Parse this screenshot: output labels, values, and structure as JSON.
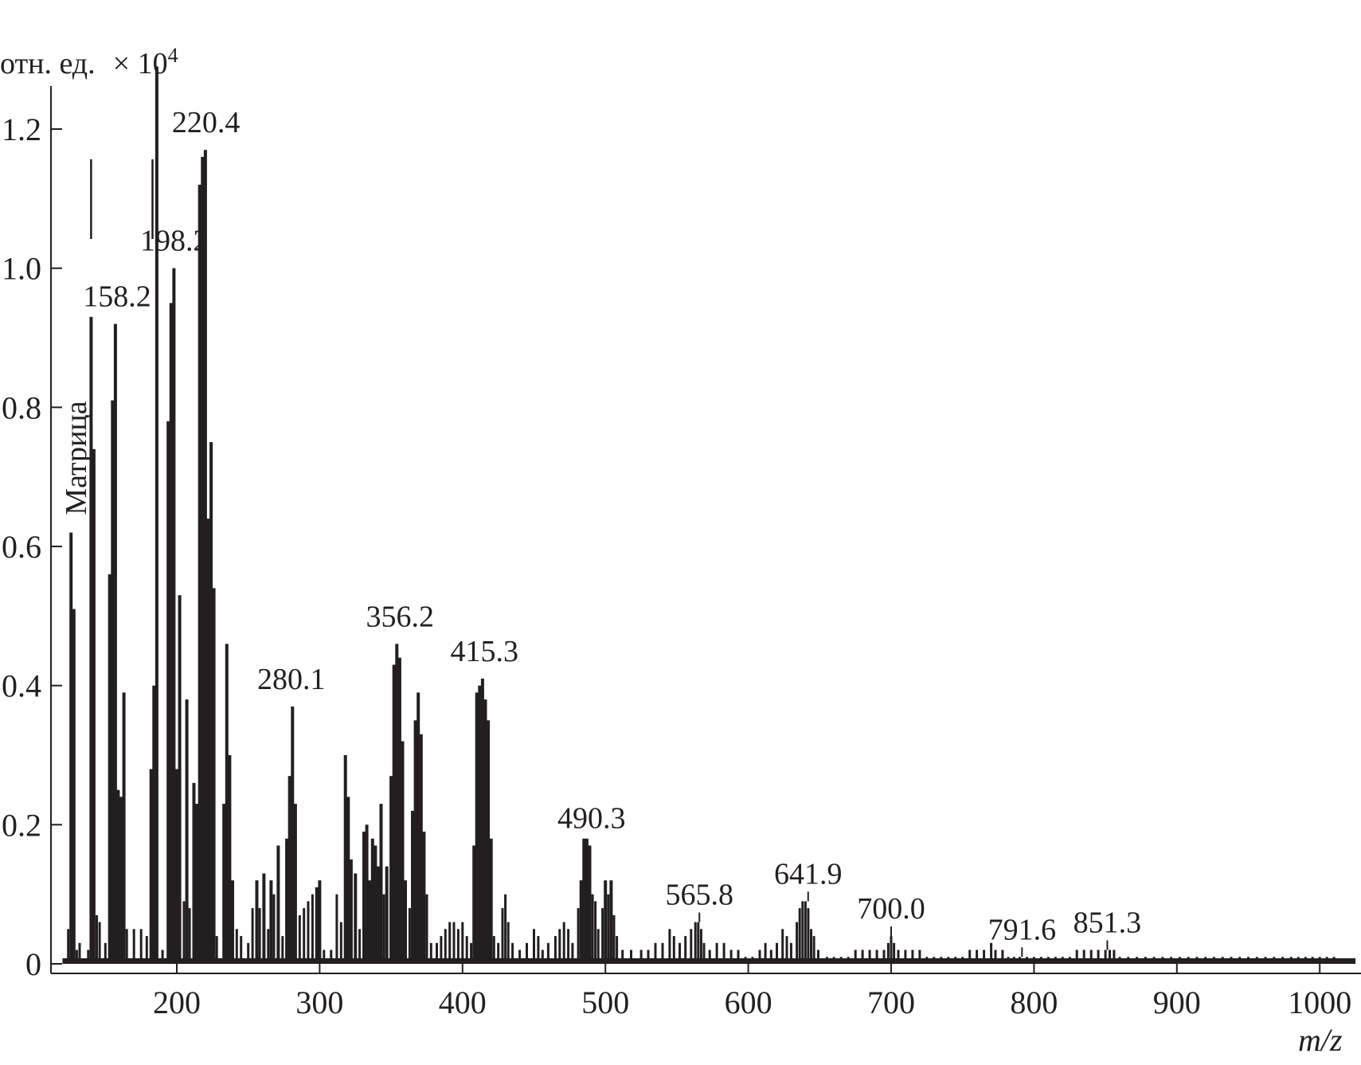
{
  "chart_data": {
    "type": "bar",
    "title": "",
    "xlabel": "m/z",
    "ylabel": "отн. ед.",
    "y_multiplier": "× 10",
    "y_multiplier_exp": "4",
    "xlim": [
      115,
      1025
    ],
    "ylim": [
      0,
      1.26
    ],
    "x_ticks": [
      200,
      300,
      400,
      500,
      600,
      700,
      800,
      900,
      1000
    ],
    "x_tick_labels": [
      "200",
      "300",
      "400",
      "500",
      "600",
      "700",
      "800",
      "900",
      "1000"
    ],
    "y_ticks": [
      0,
      0.2,
      0.4,
      0.6,
      0.8,
      1.0,
      1.2
    ],
    "y_tick_labels": [
      "0",
      "0.2",
      "0.4",
      "0.6",
      "0.8",
      "1.0",
      "1.2"
    ],
    "grid": false,
    "matrix_label": "Матрица",
    "matrix_peaks": [
      140,
      183
    ],
    "annotations": [
      {
        "label": "158.2",
        "x": 158.2
      },
      {
        "label": "198.2",
        "x": 198.2
      },
      {
        "label": "220.4",
        "x": 220.4
      },
      {
        "label": "280.1",
        "x": 280.1
      },
      {
        "label": "356.2",
        "x": 356.2
      },
      {
        "label": "415.3",
        "x": 415.3
      },
      {
        "label": "490.3",
        "x": 490.3
      },
      {
        "label": "565.8",
        "x": 565.8
      },
      {
        "label": "641.9",
        "x": 641.9
      },
      {
        "label": "700.0",
        "x": 700.0
      },
      {
        "label": "791.6",
        "x": 791.6
      },
      {
        "label": "851.3",
        "x": 851.3
      }
    ],
    "peaks": [
      [
        124,
        0.05
      ],
      [
        126,
        0.62
      ],
      [
        128,
        0.51
      ],
      [
        130,
        0.02
      ],
      [
        132,
        0.03
      ],
      [
        138,
        0.02
      ],
      [
        140,
        0.93
      ],
      [
        142,
        0.74
      ],
      [
        144,
        0.07
      ],
      [
        146,
        0.06
      ],
      [
        150,
        0.03
      ],
      [
        153,
        0.56
      ],
      [
        155,
        0.81
      ],
      [
        157,
        0.92
      ],
      [
        159,
        0.25
      ],
      [
        161,
        0.24
      ],
      [
        163,
        0.39
      ],
      [
        165,
        0.05
      ],
      [
        170,
        0.05
      ],
      [
        175,
        0.05
      ],
      [
        179,
        0.04
      ],
      [
        182,
        0.28
      ],
      [
        184,
        0.4
      ],
      [
        186,
        1.29
      ],
      [
        190,
        0.02
      ],
      [
        194,
        0.78
      ],
      [
        196,
        0.95
      ],
      [
        198,
        1.0
      ],
      [
        200,
        0.28
      ],
      [
        202,
        0.53
      ],
      [
        205,
        0.09
      ],
      [
        207,
        0.38
      ],
      [
        209,
        0.08
      ],
      [
        212,
        0.26
      ],
      [
        214,
        0.23
      ],
      [
        216,
        1.12
      ],
      [
        218,
        1.16
      ],
      [
        220,
        1.17
      ],
      [
        222,
        0.64
      ],
      [
        224,
        0.75
      ],
      [
        226,
        0.54
      ],
      [
        228,
        0.04
      ],
      [
        233,
        0.23
      ],
      [
        235,
        0.46
      ],
      [
        237,
        0.3
      ],
      [
        239,
        0.12
      ],
      [
        242,
        0.05
      ],
      [
        245,
        0.04
      ],
      [
        250,
        0.03
      ],
      [
        253,
        0.08
      ],
      [
        256,
        0.12
      ],
      [
        258,
        0.08
      ],
      [
        261,
        0.13
      ],
      [
        264,
        0.05
      ],
      [
        266,
        0.12
      ],
      [
        268,
        0.1
      ],
      [
        271,
        0.17
      ],
      [
        274,
        0.04
      ],
      [
        277,
        0.18
      ],
      [
        279,
        0.27
      ],
      [
        281,
        0.37
      ],
      [
        283,
        0.23
      ],
      [
        286,
        0.07
      ],
      [
        289,
        0.08
      ],
      [
        292,
        0.09
      ],
      [
        295,
        0.1
      ],
      [
        298,
        0.11
      ],
      [
        300,
        0.12
      ],
      [
        303,
        0.02
      ],
      [
        308,
        0.02
      ],
      [
        312,
        0.1
      ],
      [
        315,
        0.06
      ],
      [
        318,
        0.3
      ],
      [
        320,
        0.24
      ],
      [
        322,
        0.15
      ],
      [
        325,
        0.13
      ],
      [
        328,
        0.05
      ],
      [
        331,
        0.19
      ],
      [
        333,
        0.2
      ],
      [
        335,
        0.12
      ],
      [
        337,
        0.18
      ],
      [
        339,
        0.17
      ],
      [
        341,
        0.14
      ],
      [
        343,
        0.23
      ],
      [
        345,
        0.1
      ],
      [
        347,
        0.14
      ],
      [
        350,
        0.27
      ],
      [
        352,
        0.43
      ],
      [
        354,
        0.46
      ],
      [
        356,
        0.44
      ],
      [
        358,
        0.32
      ],
      [
        360,
        0.12
      ],
      [
        363,
        0.08
      ],
      [
        365,
        0.22
      ],
      [
        367,
        0.35
      ],
      [
        369,
        0.39
      ],
      [
        371,
        0.33
      ],
      [
        373,
        0.19
      ],
      [
        375,
        0.1
      ],
      [
        378,
        0.03
      ],
      [
        382,
        0.03
      ],
      [
        385,
        0.04
      ],
      [
        388,
        0.05
      ],
      [
        391,
        0.06
      ],
      [
        394,
        0.06
      ],
      [
        397,
        0.05
      ],
      [
        400,
        0.06
      ],
      [
        403,
        0.04
      ],
      [
        406,
        0.03
      ],
      [
        408,
        0.17
      ],
      [
        410,
        0.39
      ],
      [
        412,
        0.4
      ],
      [
        414,
        0.41
      ],
      [
        416,
        0.38
      ],
      [
        418,
        0.35
      ],
      [
        420,
        0.18
      ],
      [
        422,
        0.04
      ],
      [
        425,
        0.03
      ],
      [
        428,
        0.08
      ],
      [
        430,
        0.1
      ],
      [
        432,
        0.06
      ],
      [
        435,
        0.03
      ],
      [
        440,
        0.02
      ],
      [
        445,
        0.03
      ],
      [
        450,
        0.05
      ],
      [
        453,
        0.04
      ],
      [
        456,
        0.02
      ],
      [
        460,
        0.03
      ],
      [
        465,
        0.04
      ],
      [
        468,
        0.05
      ],
      [
        471,
        0.06
      ],
      [
        474,
        0.05
      ],
      [
        477,
        0.03
      ],
      [
        481,
        0.08
      ],
      [
        483,
        0.12
      ],
      [
        485,
        0.18
      ],
      [
        487,
        0.18
      ],
      [
        489,
        0.17
      ],
      [
        491,
        0.1
      ],
      [
        493,
        0.09
      ],
      [
        495,
        0.05
      ],
      [
        498,
        0.08
      ],
      [
        500,
        0.12
      ],
      [
        502,
        0.1
      ],
      [
        504,
        0.12
      ],
      [
        506,
        0.07
      ],
      [
        508,
        0.04
      ],
      [
        512,
        0.02
      ],
      [
        518,
        0.02
      ],
      [
        525,
        0.02
      ],
      [
        530,
        0.02
      ],
      [
        535,
        0.03
      ],
      [
        540,
        0.03
      ],
      [
        545,
        0.05
      ],
      [
        548,
        0.04
      ],
      [
        552,
        0.03
      ],
      [
        556,
        0.04
      ],
      [
        560,
        0.05
      ],
      [
        563,
        0.06
      ],
      [
        565,
        0.06
      ],
      [
        567,
        0.05
      ],
      [
        569,
        0.03
      ],
      [
        573,
        0.02
      ],
      [
        578,
        0.03
      ],
      [
        583,
        0.03
      ],
      [
        588,
        0.02
      ],
      [
        593,
        0.02
      ],
      [
        598,
        0.01
      ],
      [
        603,
        0.01
      ],
      [
        608,
        0.02
      ],
      [
        612,
        0.03
      ],
      [
        616,
        0.02
      ],
      [
        620,
        0.03
      ],
      [
        624,
        0.05
      ],
      [
        627,
        0.04
      ],
      [
        630,
        0.03
      ],
      [
        634,
        0.06
      ],
      [
        636,
        0.08
      ],
      [
        638,
        0.09
      ],
      [
        640,
        0.09
      ],
      [
        642,
        0.08
      ],
      [
        644,
        0.05
      ],
      [
        646,
        0.04
      ],
      [
        649,
        0.02
      ],
      [
        655,
        0.01
      ],
      [
        660,
        0.01
      ],
      [
        665,
        0.01
      ],
      [
        670,
        0.01
      ],
      [
        675,
        0.02
      ],
      [
        680,
        0.02
      ],
      [
        685,
        0.02
      ],
      [
        690,
        0.02
      ],
      [
        695,
        0.02
      ],
      [
        698,
        0.03
      ],
      [
        700,
        0.04
      ],
      [
        702,
        0.03
      ],
      [
        705,
        0.02
      ],
      [
        710,
        0.02
      ],
      [
        715,
        0.02
      ],
      [
        720,
        0.02
      ],
      [
        725,
        0.01
      ],
      [
        730,
        0.01
      ],
      [
        735,
        0.01
      ],
      [
        740,
        0.01
      ],
      [
        745,
        0.01
      ],
      [
        750,
        0.01
      ],
      [
        755,
        0.02
      ],
      [
        760,
        0.02
      ],
      [
        765,
        0.02
      ],
      [
        770,
        0.03
      ],
      [
        773,
        0.02
      ],
      [
        778,
        0.02
      ],
      [
        782,
        0.01
      ],
      [
        786,
        0.01
      ],
      [
        790,
        0.01
      ],
      [
        795,
        0.01
      ],
      [
        800,
        0.01
      ],
      [
        805,
        0.01
      ],
      [
        810,
        0.01
      ],
      [
        815,
        0.01
      ],
      [
        820,
        0.01
      ],
      [
        825,
        0.01
      ],
      [
        830,
        0.02
      ],
      [
        835,
        0.02
      ],
      [
        840,
        0.02
      ],
      [
        845,
        0.02
      ],
      [
        850,
        0.02
      ],
      [
        853,
        0.02
      ],
      [
        856,
        0.02
      ],
      [
        860,
        0.01
      ],
      [
        866,
        0.01
      ],
      [
        872,
        0.01
      ],
      [
        878,
        0.01
      ],
      [
        884,
        0.01
      ],
      [
        890,
        0.01
      ],
      [
        896,
        0.01
      ],
      [
        902,
        0.01
      ],
      [
        908,
        0.01
      ],
      [
        914,
        0.01
      ],
      [
        920,
        0.01
      ],
      [
        926,
        0.01
      ],
      [
        932,
        0.01
      ],
      [
        938,
        0.01
      ],
      [
        944,
        0.01
      ],
      [
        950,
        0.01
      ],
      [
        956,
        0.01
      ],
      [
        962,
        0.01
      ],
      [
        968,
        0.01
      ],
      [
        974,
        0.01
      ],
      [
        980,
        0.01
      ],
      [
        985,
        0.01
      ],
      [
        990,
        0.01
      ],
      [
        995,
        0.01
      ],
      [
        1000,
        0.01
      ],
      [
        1005,
        0.01
      ],
      [
        1010,
        0.01
      ],
      [
        1015,
        0.005
      ],
      [
        1020,
        0.005
      ]
    ]
  }
}
